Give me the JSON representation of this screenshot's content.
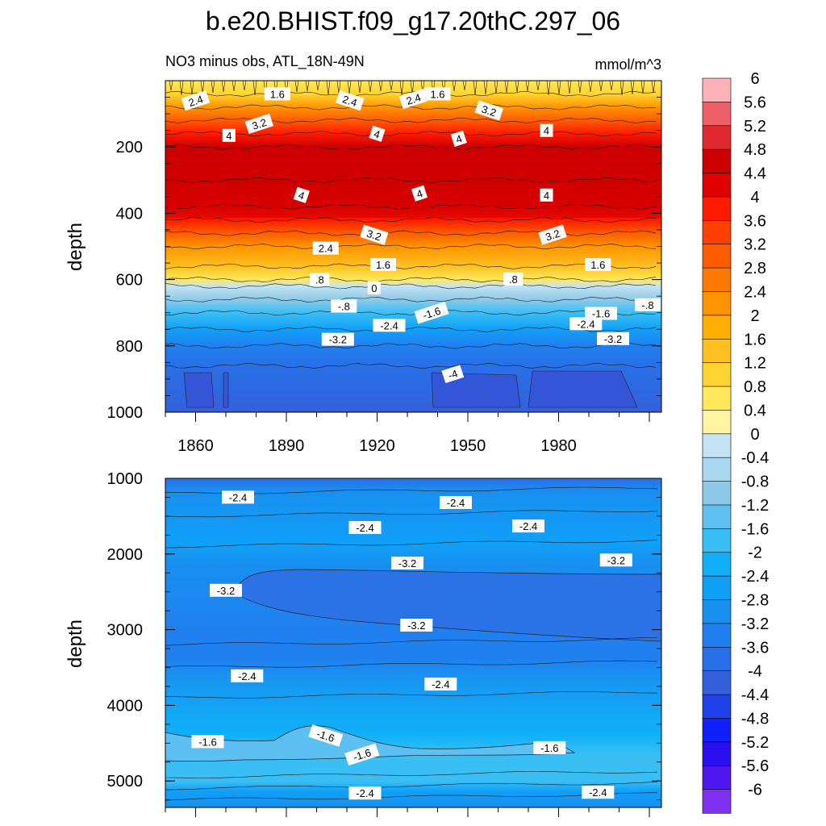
{
  "title": "b.e20.BHIST.f09_g17.20thC.297_06",
  "top_panel": {
    "left_label": "NO3 minus obs, ATL_18N-49N",
    "right_label": "mmol/m^3",
    "ylabel": "depth"
  },
  "bottom_panel": {
    "ylabel": "depth"
  },
  "chart_data": [
    {
      "type": "heatmap",
      "name": "upper-ocean",
      "title": "NO3 minus obs, ATL_18N-49N",
      "units": "mmol/m^3",
      "xlabel": "",
      "ylabel": "depth",
      "xlim": [
        1850,
        2014
      ],
      "ylim": [
        1000,
        0
      ],
      "x_ticks": [
        1860,
        1890,
        1920,
        1950,
        1980
      ],
      "y_ticks": [
        200,
        400,
        600,
        800,
        1000
      ],
      "profile": [
        {
          "depth": 0,
          "value": 0.6
        },
        {
          "depth": 40,
          "value": 1.0
        },
        {
          "depth": 80,
          "value": 2.2
        },
        {
          "depth": 120,
          "value": 3.0
        },
        {
          "depth": 160,
          "value": 3.8
        },
        {
          "depth": 200,
          "value": 4.4
        },
        {
          "depth": 300,
          "value": 4.7
        },
        {
          "depth": 380,
          "value": 4.2
        },
        {
          "depth": 420,
          "value": 3.6
        },
        {
          "depth": 460,
          "value": 3.0
        },
        {
          "depth": 500,
          "value": 2.2
        },
        {
          "depth": 560,
          "value": 1.4
        },
        {
          "depth": 600,
          "value": 0.4
        },
        {
          "depth": 620,
          "value": -0.2
        },
        {
          "depth": 660,
          "value": -1.0
        },
        {
          "depth": 700,
          "value": -1.8
        },
        {
          "depth": 750,
          "value": -2.6
        },
        {
          "depth": 800,
          "value": -3.3
        },
        {
          "depth": 860,
          "value": -3.9
        },
        {
          "depth": 1000,
          "value": -4.1
        }
      ],
      "contour_labels": [
        {
          "text": "2.4",
          "year": 1860,
          "depth": 60
        },
        {
          "text": "1.6",
          "year": 1887,
          "depth": 40
        },
        {
          "text": "2.4",
          "year": 1911,
          "depth": 60
        },
        {
          "text": "2.4",
          "year": 1932,
          "depth": 55
        },
        {
          "text": "1.6",
          "year": 1940,
          "depth": 40
        },
        {
          "text": "3.2",
          "year": 1957,
          "depth": 90
        },
        {
          "text": "3.2",
          "year": 1881,
          "depth": 130
        },
        {
          "text": "4",
          "year": 1871,
          "depth": 165
        },
        {
          "text": "4",
          "year": 1920,
          "depth": 160
        },
        {
          "text": "4",
          "year": 1947,
          "depth": 175
        },
        {
          "text": "4",
          "year": 1976,
          "depth": 150
        },
        {
          "text": "4",
          "year": 1895,
          "depth": 345
        },
        {
          "text": "4",
          "year": 1934,
          "depth": 340
        },
        {
          "text": "4",
          "year": 1976,
          "depth": 345
        },
        {
          "text": "3.2",
          "year": 1919,
          "depth": 465
        },
        {
          "text": "3.2",
          "year": 1978,
          "depth": 465
        },
        {
          "text": "2.4",
          "year": 1903,
          "depth": 505
        },
        {
          "text": "1.6",
          "year": 1922,
          "depth": 555
        },
        {
          "text": "1.6",
          "year": 1993,
          "depth": 555
        },
        {
          "text": ".8",
          "year": 1901,
          "depth": 600
        },
        {
          "text": ".8",
          "year": 1965,
          "depth": 598
        },
        {
          "text": "0",
          "year": 1919,
          "depth": 625
        },
        {
          "text": "-.8",
          "year": 1909,
          "depth": 680
        },
        {
          "text": "-.8",
          "year": 2010,
          "depth": 676
        },
        {
          "text": "-1.6",
          "year": 1938,
          "depth": 700
        },
        {
          "text": "-1.6",
          "year": 1994,
          "depth": 702
        },
        {
          "text": "-2.4",
          "year": 1924,
          "depth": 738
        },
        {
          "text": "-2.4",
          "year": 1989,
          "depth": 733
        },
        {
          "text": "-3.2",
          "year": 1907,
          "depth": 780
        },
        {
          "text": "-3.2",
          "year": 1998,
          "depth": 778
        },
        {
          "text": "-4",
          "year": 1945,
          "depth": 885
        }
      ]
    },
    {
      "type": "heatmap",
      "name": "deep-ocean",
      "xlabel": "",
      "ylabel": "depth",
      "xlim": [
        1850,
        2014
      ],
      "ylim": [
        5350,
        1000
      ],
      "y_ticks": [
        1000,
        2000,
        3000,
        4000,
        5000
      ],
      "contour_labels": [
        {
          "text": "-2.4",
          "year": 1874,
          "depth": 1250
        },
        {
          "text": "-2.4",
          "year": 1946,
          "depth": 1320
        },
        {
          "text": "-2.4",
          "year": 1916,
          "depth": 1650
        },
        {
          "text": "-2.4",
          "year": 1970,
          "depth": 1630
        },
        {
          "text": "-3.2",
          "year": 1930,
          "depth": 2120
        },
        {
          "text": "-3.2",
          "year": 1999,
          "depth": 2080
        },
        {
          "text": "-3.2",
          "year": 1870,
          "depth": 2480
        },
        {
          "text": "-3.2",
          "year": 1933,
          "depth": 2940
        },
        {
          "text": "-2.4",
          "year": 1877,
          "depth": 3610
        },
        {
          "text": "-2.4",
          "year": 1941,
          "depth": 3720
        },
        {
          "text": "-1.6",
          "year": 1864,
          "depth": 4480
        },
        {
          "text": "-1.6",
          "year": 1903,
          "depth": 4400
        },
        {
          "text": "-1.6",
          "year": 1915,
          "depth": 4650
        },
        {
          "text": "-1.6",
          "year": 1977,
          "depth": 4560
        },
        {
          "text": "-2.4",
          "year": 1916,
          "depth": 5160
        },
        {
          "text": "-2.4",
          "year": 1993,
          "depth": 5150
        }
      ]
    }
  ],
  "colorbar": {
    "levels": [
      "6",
      "5.6",
      "5.2",
      "4.8",
      "4.4",
      "4",
      "3.6",
      "3.2",
      "2.8",
      "2.4",
      "2",
      "1.6",
      "1.2",
      "0.8",
      "0.4",
      "0",
      "-0.4",
      "-0.8",
      "-1.2",
      "-1.6",
      "-2",
      "-2.4",
      "-2.8",
      "-3.2",
      "-3.6",
      "-4",
      "-4.4",
      "-4.8",
      "-5.2",
      "-5.6",
      "-6"
    ],
    "colors": [
      "#ffb3b8",
      "#f06068",
      "#e02a30",
      "#cc0000",
      "#e00000",
      "#ff1a00",
      "#ff4000",
      "#ff5c00",
      "#ff7800",
      "#ff9400",
      "#ffad00",
      "#ffc020",
      "#ffd430",
      "#ffe85a",
      "#fff5a0",
      "#c4e4f4",
      "#a8d8f0",
      "#8ecae8",
      "#60c0f0",
      "#3abff5",
      "#10b0f8",
      "#10a0f8",
      "#1890f0",
      "#2080f0",
      "#2870e8",
      "#3460dc",
      "#2040e8",
      "#1020f8",
      "#2a10f0",
      "#5018f0",
      "#8030f0"
    ]
  }
}
